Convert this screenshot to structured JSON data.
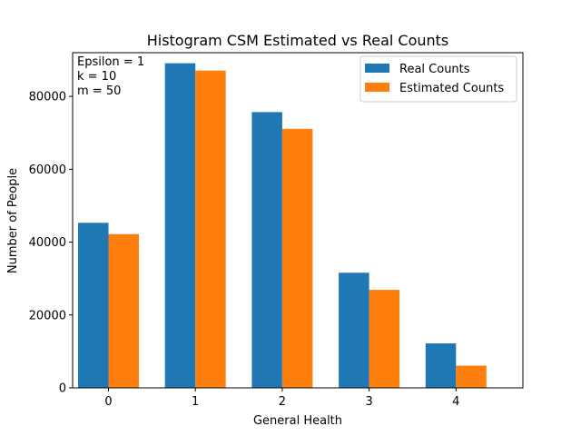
{
  "chart_data": {
    "type": "bar",
    "title": "Histogram CSM Estimated vs Real Counts",
    "xlabel": "General Health",
    "ylabel": "Number of People",
    "categories": [
      "0",
      "1",
      "2",
      "3",
      "4"
    ],
    "series": [
      {
        "name": "Real Counts",
        "color": "#1f77b4",
        "values": [
          45300,
          89100,
          75700,
          31600,
          12200
        ]
      },
      {
        "name": "Estimated Counts",
        "color": "#ff7f0e",
        "values": [
          42200,
          87100,
          71100,
          26900,
          6100
        ]
      }
    ],
    "ylim": [
      0,
      92000
    ],
    "yticks": [
      0,
      20000,
      40000,
      60000,
      80000
    ],
    "ytick_labels": [
      "0",
      "20000",
      "40000",
      "60000",
      "80000"
    ],
    "legend_position": "upper right",
    "grid": false,
    "annotation_lines": [
      "Epsilon = 1",
      "k = 10",
      "m = 50"
    ]
  }
}
